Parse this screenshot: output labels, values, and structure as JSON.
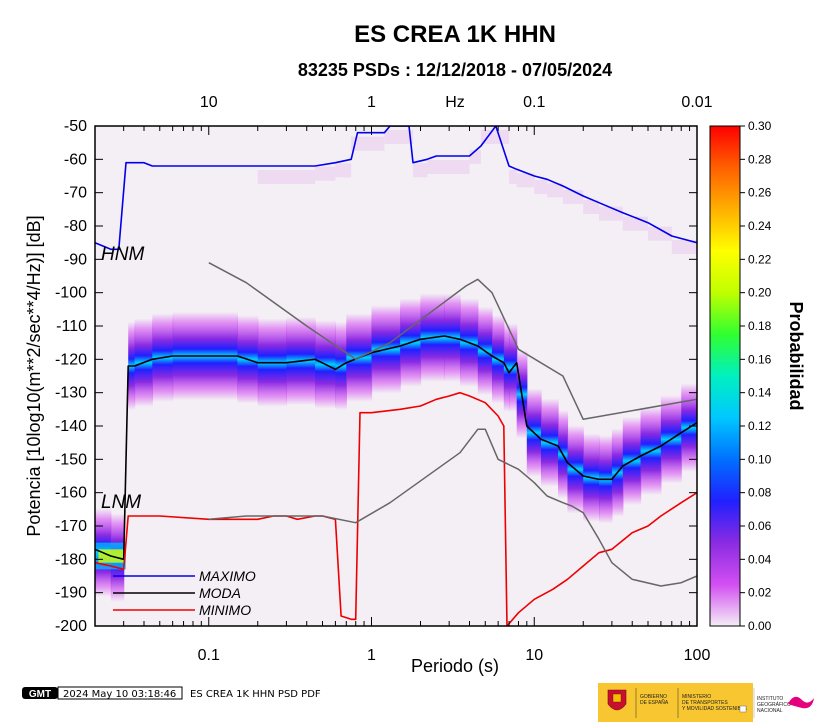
{
  "chart_data": {
    "type": "heatmap",
    "title": "ES CREA 1K HHN",
    "subtitle": "83235 PSDs : 12/12/2018 - 07/05/2024",
    "xlabel": "Periodo (s)",
    "ylabel": "Potencia [10log10(m**2/sec**4/Hz)] [dB]",
    "x_scale": "log",
    "xlim": [
      0.02,
      100
    ],
    "ylim": [
      -200,
      -50
    ],
    "x_ticks": [
      {
        "v": 0.1,
        "label": "0.1"
      },
      {
        "v": 1,
        "label": "1"
      },
      {
        "v": 10,
        "label": "10"
      },
      {
        "v": 100,
        "label": "100"
      }
    ],
    "y_ticks": [
      -50,
      -60,
      -70,
      -80,
      -90,
      -100,
      -110,
      -120,
      -130,
      -140,
      -150,
      -160,
      -170,
      -180,
      -190,
      -200
    ],
    "top_axis": {
      "unit_label": "Hz",
      "ticks": [
        {
          "v": 0.1,
          "label": "10"
        },
        {
          "v": 1,
          "label": "1"
        },
        {
          "v": 10,
          "label": "0.1"
        },
        {
          "v": 100,
          "label": "0.01"
        }
      ]
    },
    "colorbar": {
      "label": "Probabilidad",
      "range": [
        0,
        0.3
      ],
      "ticks": [
        "0.00",
        "0.02",
        "0.04",
        "0.06",
        "0.08",
        "0.10",
        "0.12",
        "0.14",
        "0.16",
        "0.18",
        "0.20",
        "0.22",
        "0.24",
        "0.26",
        "0.28",
        "0.30"
      ],
      "colors": [
        "#f4eef5",
        "#d24ff2",
        "#8a2be2",
        "#2020ff",
        "#0070ff",
        "#00c8ff",
        "#00f0c0",
        "#30ff30",
        "#c0ff00",
        "#ffff00",
        "#ffb000",
        "#ff6000",
        "#ff0000"
      ]
    },
    "model_labels": {
      "hnm": "HNM",
      "lnm": "LNM"
    },
    "series": [
      {
        "name": "MAXIMO",
        "color": "#0000ee",
        "points": [
          [
            0.02,
            -85
          ],
          [
            0.025,
            -87
          ],
          [
            0.028,
            -87
          ],
          [
            0.031,
            -61
          ],
          [
            0.04,
            -61
          ],
          [
            0.045,
            -62
          ],
          [
            0.2,
            -62
          ],
          [
            0.3,
            -62
          ],
          [
            0.45,
            -62
          ],
          [
            0.6,
            -61
          ],
          [
            0.75,
            -60
          ],
          [
            0.82,
            -52
          ],
          [
            1.2,
            -52
          ],
          [
            1.3,
            -50
          ],
          [
            1.7,
            -50
          ],
          [
            1.8,
            -61
          ],
          [
            2.2,
            -60
          ],
          [
            2.5,
            -59
          ],
          [
            4,
            -59
          ],
          [
            4.7,
            -56
          ],
          [
            5.8,
            -50
          ],
          [
            7,
            -62
          ],
          [
            7.8,
            -63
          ],
          [
            10,
            -65
          ],
          [
            12,
            -66
          ],
          [
            15,
            -68
          ],
          [
            20,
            -71
          ],
          [
            25,
            -73
          ],
          [
            35,
            -76
          ],
          [
            50,
            -79
          ],
          [
            70,
            -83
          ],
          [
            100,
            -85
          ]
        ]
      },
      {
        "name": "MODA",
        "color": "#000000",
        "points": [
          [
            0.02,
            -177
          ],
          [
            0.025,
            -179
          ],
          [
            0.03,
            -180
          ],
          [
            0.032,
            -122
          ],
          [
            0.035,
            -122
          ],
          [
            0.045,
            -120
          ],
          [
            0.06,
            -119
          ],
          [
            0.15,
            -119
          ],
          [
            0.2,
            -121
          ],
          [
            0.3,
            -121
          ],
          [
            0.45,
            -120
          ],
          [
            0.6,
            -123
          ],
          [
            0.7,
            -121
          ],
          [
            1,
            -118
          ],
          [
            1.5,
            -116
          ],
          [
            2,
            -114
          ],
          [
            2.8,
            -113
          ],
          [
            3.5,
            -114
          ],
          [
            4.5,
            -116
          ],
          [
            5.5,
            -119
          ],
          [
            6.5,
            -121
          ],
          [
            7,
            -124
          ],
          [
            7.8,
            -121
          ],
          [
            9,
            -140
          ],
          [
            11,
            -144
          ],
          [
            14,
            -146
          ],
          [
            16,
            -151
          ],
          [
            20,
            -155
          ],
          [
            25,
            -156
          ],
          [
            30,
            -156
          ],
          [
            35,
            -152
          ],
          [
            45,
            -149
          ],
          [
            60,
            -146
          ],
          [
            80,
            -142
          ],
          [
            100,
            -139
          ]
        ]
      },
      {
        "name": "MINIMO",
        "color": "#ee0000",
        "points": [
          [
            0.02,
            -181
          ],
          [
            0.025,
            -182
          ],
          [
            0.03,
            -183
          ],
          [
            0.032,
            -167
          ],
          [
            0.05,
            -167
          ],
          [
            0.1,
            -168
          ],
          [
            0.2,
            -168
          ],
          [
            0.25,
            -167
          ],
          [
            0.3,
            -167
          ],
          [
            0.35,
            -168
          ],
          [
            0.45,
            -167
          ],
          [
            0.5,
            -167
          ],
          [
            0.6,
            -168
          ],
          [
            0.65,
            -197
          ],
          [
            0.75,
            -198
          ],
          [
            0.8,
            -198
          ],
          [
            0.85,
            -136
          ],
          [
            1,
            -136
          ],
          [
            1.5,
            -135
          ],
          [
            2,
            -134
          ],
          [
            2.5,
            -132
          ],
          [
            3,
            -131
          ],
          [
            3.5,
            -130
          ],
          [
            4,
            -131
          ],
          [
            5,
            -133
          ],
          [
            6,
            -137
          ],
          [
            6.5,
            -140
          ],
          [
            6.8,
            -200
          ],
          [
            8,
            -196
          ],
          [
            10,
            -192
          ],
          [
            13,
            -189
          ],
          [
            16,
            -186
          ],
          [
            20,
            -182
          ],
          [
            25,
            -178
          ],
          [
            30,
            -177
          ],
          [
            40,
            -172
          ],
          [
            50,
            -170
          ],
          [
            60,
            -167
          ],
          [
            80,
            -163
          ],
          [
            100,
            -160
          ]
        ]
      },
      {
        "name": "",
        "color": "#666666",
        "points": [
          [
            0.1,
            -91
          ],
          [
            0.17,
            -97
          ],
          [
            0.4,
            -110
          ],
          [
            0.8,
            -120
          ],
          [
            1.3,
            -115
          ],
          [
            3.8,
            -98
          ],
          [
            4.5,
            -96
          ],
          [
            5.5,
            -100
          ],
          [
            8,
            -117
          ],
          [
            15,
            -125
          ],
          [
            20,
            -138
          ],
          [
            100,
            -132
          ]
        ]
      },
      {
        "name": "",
        "color": "#666666",
        "points": [
          [
            0.1,
            -168
          ],
          [
            0.17,
            -167
          ],
          [
            0.4,
            -167
          ],
          [
            0.5,
            -167
          ],
          [
            0.8,
            -169
          ],
          [
            1.3,
            -163
          ],
          [
            3.5,
            -148
          ],
          [
            4.5,
            -141
          ],
          [
            5,
            -141
          ],
          [
            6,
            -150
          ],
          [
            8,
            -153
          ],
          [
            10,
            -157
          ],
          [
            12,
            -161
          ],
          [
            15,
            -163
          ],
          [
            17,
            -164
          ],
          [
            20,
            -166
          ],
          [
            25,
            -174
          ],
          [
            30,
            -181
          ],
          [
            40,
            -186
          ],
          [
            60,
            -188
          ],
          [
            80,
            -187
          ],
          [
            100,
            -185
          ]
        ]
      }
    ],
    "legend": [
      {
        "name": "MAXIMO",
        "color": "#0000ee"
      },
      {
        "name": "MODA",
        "color": "#000000"
      },
      {
        "name": "MINIMO",
        "color": "#ee0000"
      }
    ]
  },
  "footer": {
    "logo": "GMT",
    "timestamp": "2024 May 10 03:18:46",
    "caption": "ES CREA 1K HHN PSD PDF"
  },
  "logos": {
    "gob_line1": "GOBIERNO",
    "gob_line2": "DE ESPAÑA",
    "min_line1": "MINISTERIO",
    "min_line2": "DE TRANSPORTES",
    "min_line3": "Y MOVILIDAD SOSTENIBLE",
    "ign_line1": "INSTITUTO",
    "ign_line2": "GEOGRÁFICO",
    "ign_line3": "NACIONAL"
  }
}
